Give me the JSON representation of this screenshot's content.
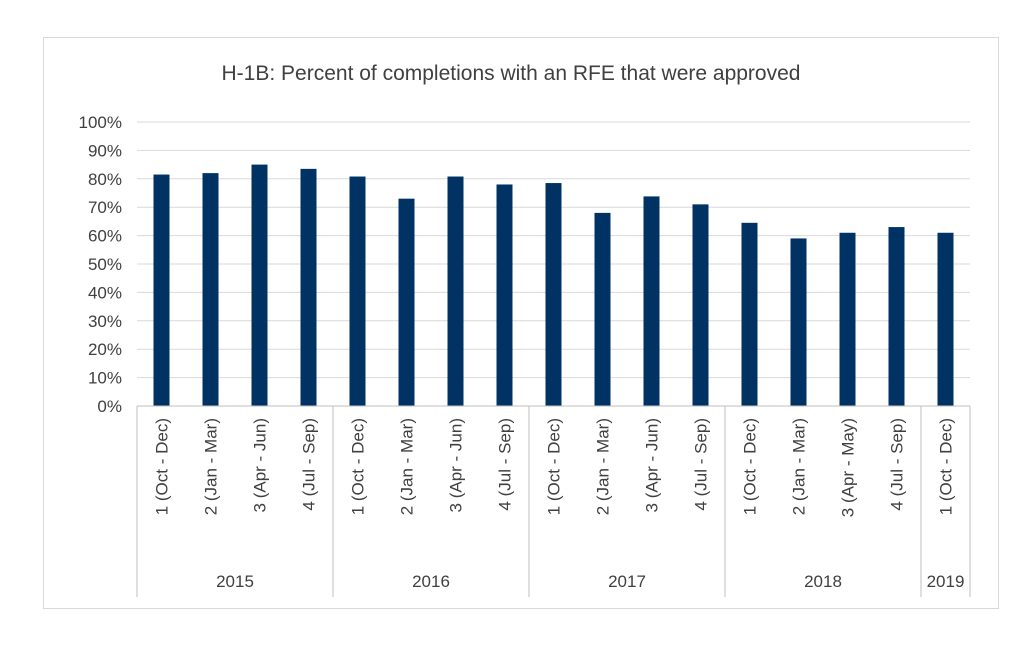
{
  "chart_data": {
    "type": "bar",
    "title": "H-1B: Percent of completions with an RFE that were approved",
    "xlabel": "",
    "ylabel": "",
    "ylim": [
      0,
      100
    ],
    "yticks": [
      "0%",
      "10%",
      "20%",
      "30%",
      "40%",
      "50%",
      "60%",
      "70%",
      "80%",
      "90%",
      "100%"
    ],
    "categories": [
      "1 (Oct - Dec)",
      "2 (Jan - Mar)",
      "3 (Apr - Jun)",
      "4 (Jul - Sep)",
      "1 (Oct - Dec)",
      "2 (Jan - Mar)",
      "3 (Apr - Jun)",
      "4 (Jul - Sep)",
      "1 (Oct - Dec)",
      "2 (Jan - Mar)",
      "3 (Apr - Jun)",
      "4 (Jul - Sep)",
      "1 (Oct - Dec)",
      "2 (Jan - Mar)",
      "3 (Apr - May)",
      "4 (Jul - Sep)",
      "1 (Oct - Dec)"
    ],
    "groups": [
      {
        "label": "2015",
        "count": 4
      },
      {
        "label": "2016",
        "count": 4
      },
      {
        "label": "2017",
        "count": 4
      },
      {
        "label": "2018",
        "count": 4
      },
      {
        "label": "2019",
        "count": 1
      }
    ],
    "values": [
      81.5,
      82,
      85,
      83.5,
      80.8,
      73,
      80.8,
      78,
      78.5,
      68,
      73.8,
      71,
      64.5,
      59,
      61,
      63,
      61
    ],
    "grid": true,
    "legend": "none",
    "bar_color": "#003263",
    "grid_color": "#d9d9d9",
    "axis_color": "#bfbfbf",
    "text_color": "#404040"
  }
}
